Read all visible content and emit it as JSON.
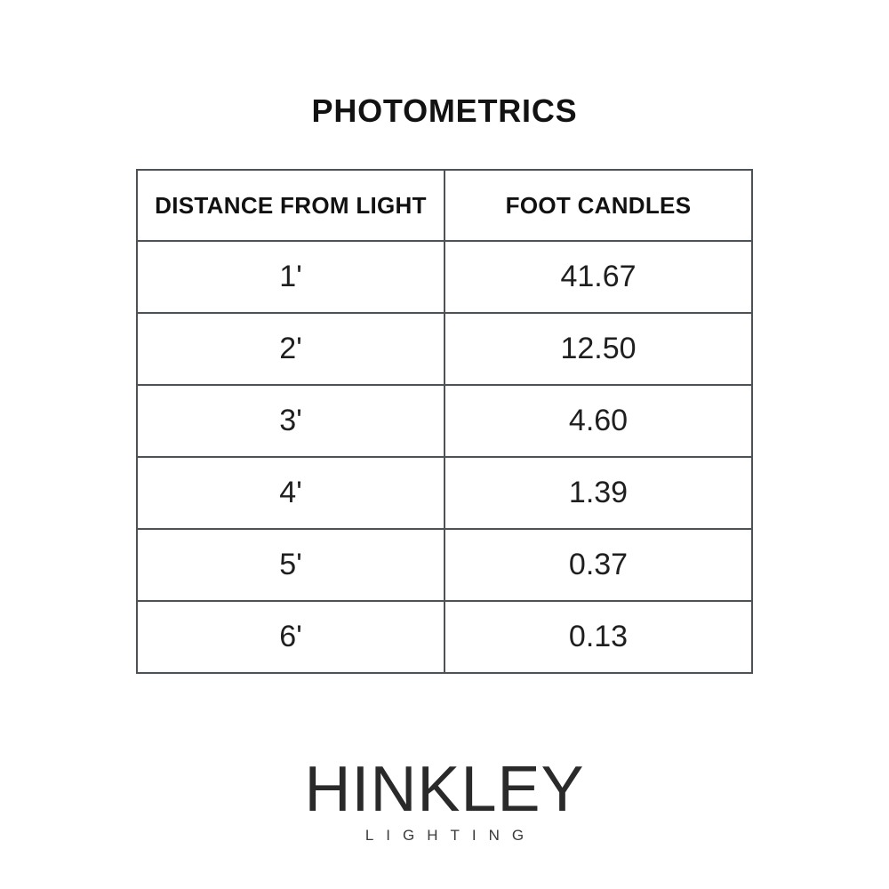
{
  "title": "PHOTOMETRICS",
  "table": {
    "headers": [
      "DISTANCE FROM LIGHT",
      "FOOT CANDLES"
    ],
    "rows": [
      {
        "distance": "1'",
        "foot_candles": "41.67"
      },
      {
        "distance": "2'",
        "foot_candles": "12.50"
      },
      {
        "distance": "3'",
        "foot_candles": "4.60"
      },
      {
        "distance": "4'",
        "foot_candles": "1.39"
      },
      {
        "distance": "5'",
        "foot_candles": "0.37"
      },
      {
        "distance": "6'",
        "foot_candles": "0.13"
      }
    ]
  },
  "chart_data": {
    "type": "table",
    "title": "PHOTOMETRICS",
    "columns": [
      "DISTANCE FROM LIGHT",
      "FOOT CANDLES"
    ],
    "x": [
      "1'",
      "2'",
      "3'",
      "4'",
      "5'",
      "6'"
    ],
    "values": [
      41.67,
      12.5,
      4.6,
      1.39,
      0.37,
      0.13
    ]
  },
  "logo": {
    "brand": "HINKLEY",
    "subtitle": "LIGHTING"
  },
  "colors": {
    "table_border": "#4d5257",
    "text": "#1a1a1a",
    "background": "#ffffff"
  }
}
